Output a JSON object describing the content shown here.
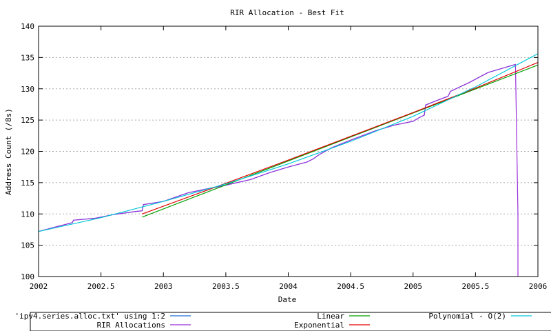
{
  "chart_data": {
    "type": "line",
    "title": "RIR Allocation - Best Fit",
    "xlabel": "Date",
    "ylabel": "Address Count (/8s)",
    "xlim": [
      2002,
      2006
    ],
    "ylim": [
      100,
      140
    ],
    "x_ticks": [
      "2002",
      "2002.5",
      "2003",
      "2003.5",
      "2004",
      "2004.5",
      "2005",
      "2005.5",
      "2006"
    ],
    "y_ticks": [
      "100",
      "105",
      "110",
      "115",
      "120",
      "125",
      "130",
      "135",
      "140"
    ],
    "grid": true,
    "legend_position": "bottom",
    "series": [
      {
        "name": "'ipv4.series.alloc.txt' using 1:2",
        "color": "#1f6fd6",
        "x": [
          2002.0,
          2002.15,
          2002.27,
          2002.28,
          2002.45,
          2002.6,
          2002.78,
          2002.83,
          2002.84,
          2003.0,
          2003.1,
          2003.2,
          2003.35,
          2003.5,
          2003.7,
          2003.85,
          2004.0,
          2004.15,
          2004.2,
          2004.25,
          2004.35,
          2004.5,
          2004.7,
          2004.85,
          2005.0,
          2005.05,
          2005.09,
          2005.1,
          2005.2,
          2005.28,
          2005.3,
          2005.45,
          2005.6,
          2005.82
        ],
        "y": [
          107.2,
          108.0,
          108.6,
          109.0,
          109.3,
          109.9,
          110.4,
          110.5,
          111.5,
          112.0,
          112.7,
          113.4,
          114.0,
          114.6,
          115.5,
          116.6,
          117.5,
          118.3,
          118.8,
          119.5,
          120.6,
          121.8,
          123.3,
          124.2,
          124.8,
          125.4,
          125.8,
          127.4,
          128.2,
          128.8,
          129.6,
          131.0,
          132.6,
          133.9
        ]
      },
      {
        "name": "RIR Allocations",
        "color": "#9b30d9",
        "x": [
          2002.0,
          2002.15,
          2002.27,
          2002.28,
          2002.45,
          2002.6,
          2002.78,
          2002.83,
          2002.84,
          2003.0,
          2003.1,
          2003.2,
          2003.35,
          2003.5,
          2003.7,
          2003.85,
          2004.0,
          2004.15,
          2004.2,
          2004.25,
          2004.35,
          2004.5,
          2004.7,
          2004.85,
          2005.0,
          2005.05,
          2005.09,
          2005.1,
          2005.2,
          2005.28,
          2005.3,
          2005.45,
          2005.6,
          2005.82,
          2005.84,
          2005.84
        ],
        "y": [
          107.2,
          108.0,
          108.6,
          109.0,
          109.3,
          109.9,
          110.4,
          110.5,
          111.5,
          112.0,
          112.7,
          113.4,
          114.0,
          114.6,
          115.5,
          116.6,
          117.5,
          118.3,
          118.8,
          119.5,
          120.6,
          121.8,
          123.3,
          124.2,
          124.8,
          125.4,
          125.8,
          127.4,
          128.2,
          128.8,
          129.6,
          131.0,
          132.6,
          133.9,
          110.0,
          100.0
        ]
      },
      {
        "name": "Linear",
        "color": "#00a000",
        "x": [
          2002.83,
          2006.0
        ],
        "y": [
          109.5,
          133.8
        ]
      },
      {
        "name": "Exponential",
        "color": "#e00000",
        "x": [
          2002.83,
          2003.5,
          2004.0,
          2004.5,
          2005.0,
          2005.5,
          2006.0
        ],
        "y": [
          110.0,
          114.9,
          118.6,
          122.4,
          126.2,
          130.1,
          134.2
        ]
      },
      {
        "name": "Polynomial - O(2)",
        "color": "#00c8d8",
        "x": [
          2002.0,
          2002.5,
          2003.0,
          2003.5,
          2004.0,
          2004.5,
          2005.0,
          2005.5,
          2006.0
        ],
        "y": [
          107.2,
          109.4,
          112.0,
          114.8,
          118.0,
          121.6,
          125.6,
          130.3,
          135.6
        ]
      }
    ]
  }
}
